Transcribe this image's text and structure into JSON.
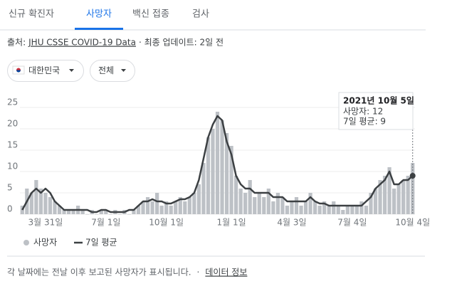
{
  "tabs": [
    "신규 확진자",
    "사망자",
    "백신 접종",
    "검사"
  ],
  "source": {
    "label": "출처:",
    "link": "JHU CSSE COVID-19 Data",
    "updated": "· 최종 업데이트: 2일 전"
  },
  "filters": [
    "대한민국",
    "전체"
  ],
  "chart_data": {
    "type": "combo",
    "categories": [
      null,
      null,
      null,
      null,
      null,
      "3월 31일",
      null,
      null,
      null,
      null,
      null,
      null,
      null,
      null,
      null,
      null,
      null,
      null,
      "7월 1일",
      null,
      null,
      null,
      null,
      null,
      null,
      null,
      null,
      null,
      null,
      null,
      null,
      "10월 1일",
      null,
      null,
      null,
      null,
      null,
      null,
      null,
      null,
      null,
      null,
      null,
      null,
      null,
      "1월 1일",
      null,
      null,
      null,
      null,
      null,
      null,
      null,
      null,
      null,
      null,
      null,
      null,
      "4월 3일",
      null,
      null,
      null,
      null,
      null,
      null,
      null,
      null,
      null,
      null,
      null,
      null,
      "7월 4일",
      null,
      null,
      null,
      null,
      null,
      null,
      null,
      null,
      null,
      null,
      null,
      null,
      "10월 4일"
    ],
    "series": [
      {
        "name": "사망자",
        "type": "bar",
        "color": "#bdc1c6",
        "values": [
          2,
          6,
          5,
          8,
          6,
          5,
          4,
          3,
          2,
          1,
          1,
          1,
          2,
          1,
          0,
          1,
          0,
          1,
          1,
          0,
          1,
          0,
          1,
          0,
          1,
          2,
          3,
          4,
          3,
          5,
          2,
          3,
          2,
          3,
          4,
          3,
          4,
          5,
          7,
          12,
          18,
          20,
          24,
          22,
          19,
          16,
          9,
          6,
          5,
          8,
          4,
          5,
          4,
          6,
          3,
          5,
          4,
          2,
          3,
          4,
          2,
          3,
          5,
          3,
          2,
          3,
          2,
          3,
          2,
          1,
          2,
          2,
          2,
          3,
          2,
          5,
          6,
          8,
          9,
          11,
          6,
          7,
          8,
          9,
          12
        ]
      },
      {
        "name": "7일 평균",
        "type": "line",
        "color": "#3c4043",
        "values": [
          1,
          3,
          5,
          6,
          5,
          6,
          5,
          3,
          2,
          1,
          1,
          1,
          1,
          1,
          1,
          0.5,
          0.5,
          1,
          1,
          0.5,
          0.5,
          0.5,
          0.5,
          1,
          1,
          2,
          3,
          3,
          3.5,
          3,
          3,
          2.5,
          2.5,
          3,
          3.5,
          3.5,
          4,
          5,
          8,
          13,
          18,
          21,
          23,
          22,
          17,
          14,
          9,
          7,
          6,
          6,
          5,
          5,
          5,
          5,
          4,
          4,
          4,
          3,
          3,
          3,
          3,
          3,
          4,
          3,
          2.5,
          2.5,
          2,
          2,
          2,
          2,
          2,
          2,
          2,
          2,
          3,
          4,
          6,
          7,
          8,
          10,
          7,
          7,
          8,
          8,
          9
        ]
      }
    ],
    "ylim": [
      0,
      29
    ],
    "yticks": [
      0,
      5,
      10,
      15,
      20,
      25
    ],
    "grid": true
  },
  "tooltip": {
    "date": "2021년 10월 5일",
    "lines": [
      "사망자: 12",
      "7일 평균: 9"
    ]
  },
  "footer": {
    "note": "각 날짜에는 전날 이후 보고된 사망자가 표시됩니다.",
    "separator": "·",
    "link": "데이터 정보"
  }
}
